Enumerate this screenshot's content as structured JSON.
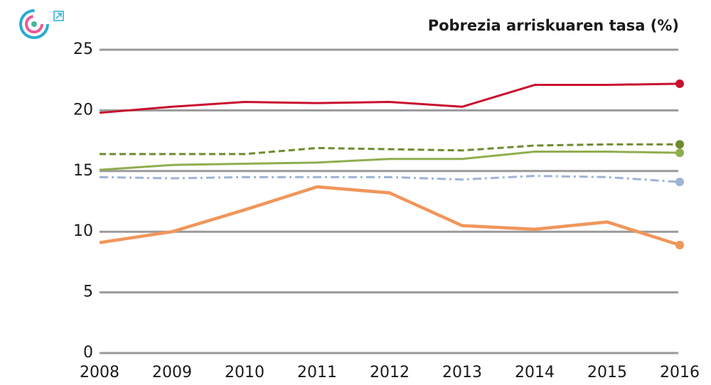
{
  "chart_data": {
    "type": "line",
    "title": "Pobrezia arriskuaren tasa (%)",
    "categories": [
      "2008",
      "2009",
      "2010",
      "2011",
      "2012",
      "2013",
      "2014",
      "2015",
      "2016"
    ],
    "series": [
      {
        "color": "#c8102e",
        "dash": "solid",
        "values": [
          19.8,
          20.3,
          20.7,
          20.6,
          20.7,
          20.3,
          22.1,
          22.1,
          22.2
        ]
      },
      {
        "color": "#6d8b2e",
        "dash": "dashed",
        "values": [
          16.4,
          16.4,
          16.4,
          16.9,
          16.8,
          16.7,
          17.1,
          17.2,
          17.2
        ]
      },
      {
        "color": "#8fae4f",
        "dash": "solid",
        "values": [
          15.1,
          15.5,
          15.6,
          15.7,
          16.0,
          16.0,
          16.6,
          16.6,
          16.5
        ]
      },
      {
        "color": "#9fb3d6",
        "dash": "dashdot",
        "values": [
          14.5,
          14.4,
          14.5,
          14.5,
          14.5,
          14.3,
          14.6,
          14.5,
          14.1
        ]
      },
      {
        "color": "#f0965a",
        "dash": "solid",
        "values": [
          9.1,
          10.0,
          11.8,
          13.7,
          13.2,
          10.5,
          10.2,
          10.8,
          8.9
        ]
      }
    ],
    "ylim": [
      0,
      25
    ],
    "yticks": [
      0,
      5,
      10,
      15,
      20,
      25
    ],
    "grid": true,
    "end_markers": true
  }
}
